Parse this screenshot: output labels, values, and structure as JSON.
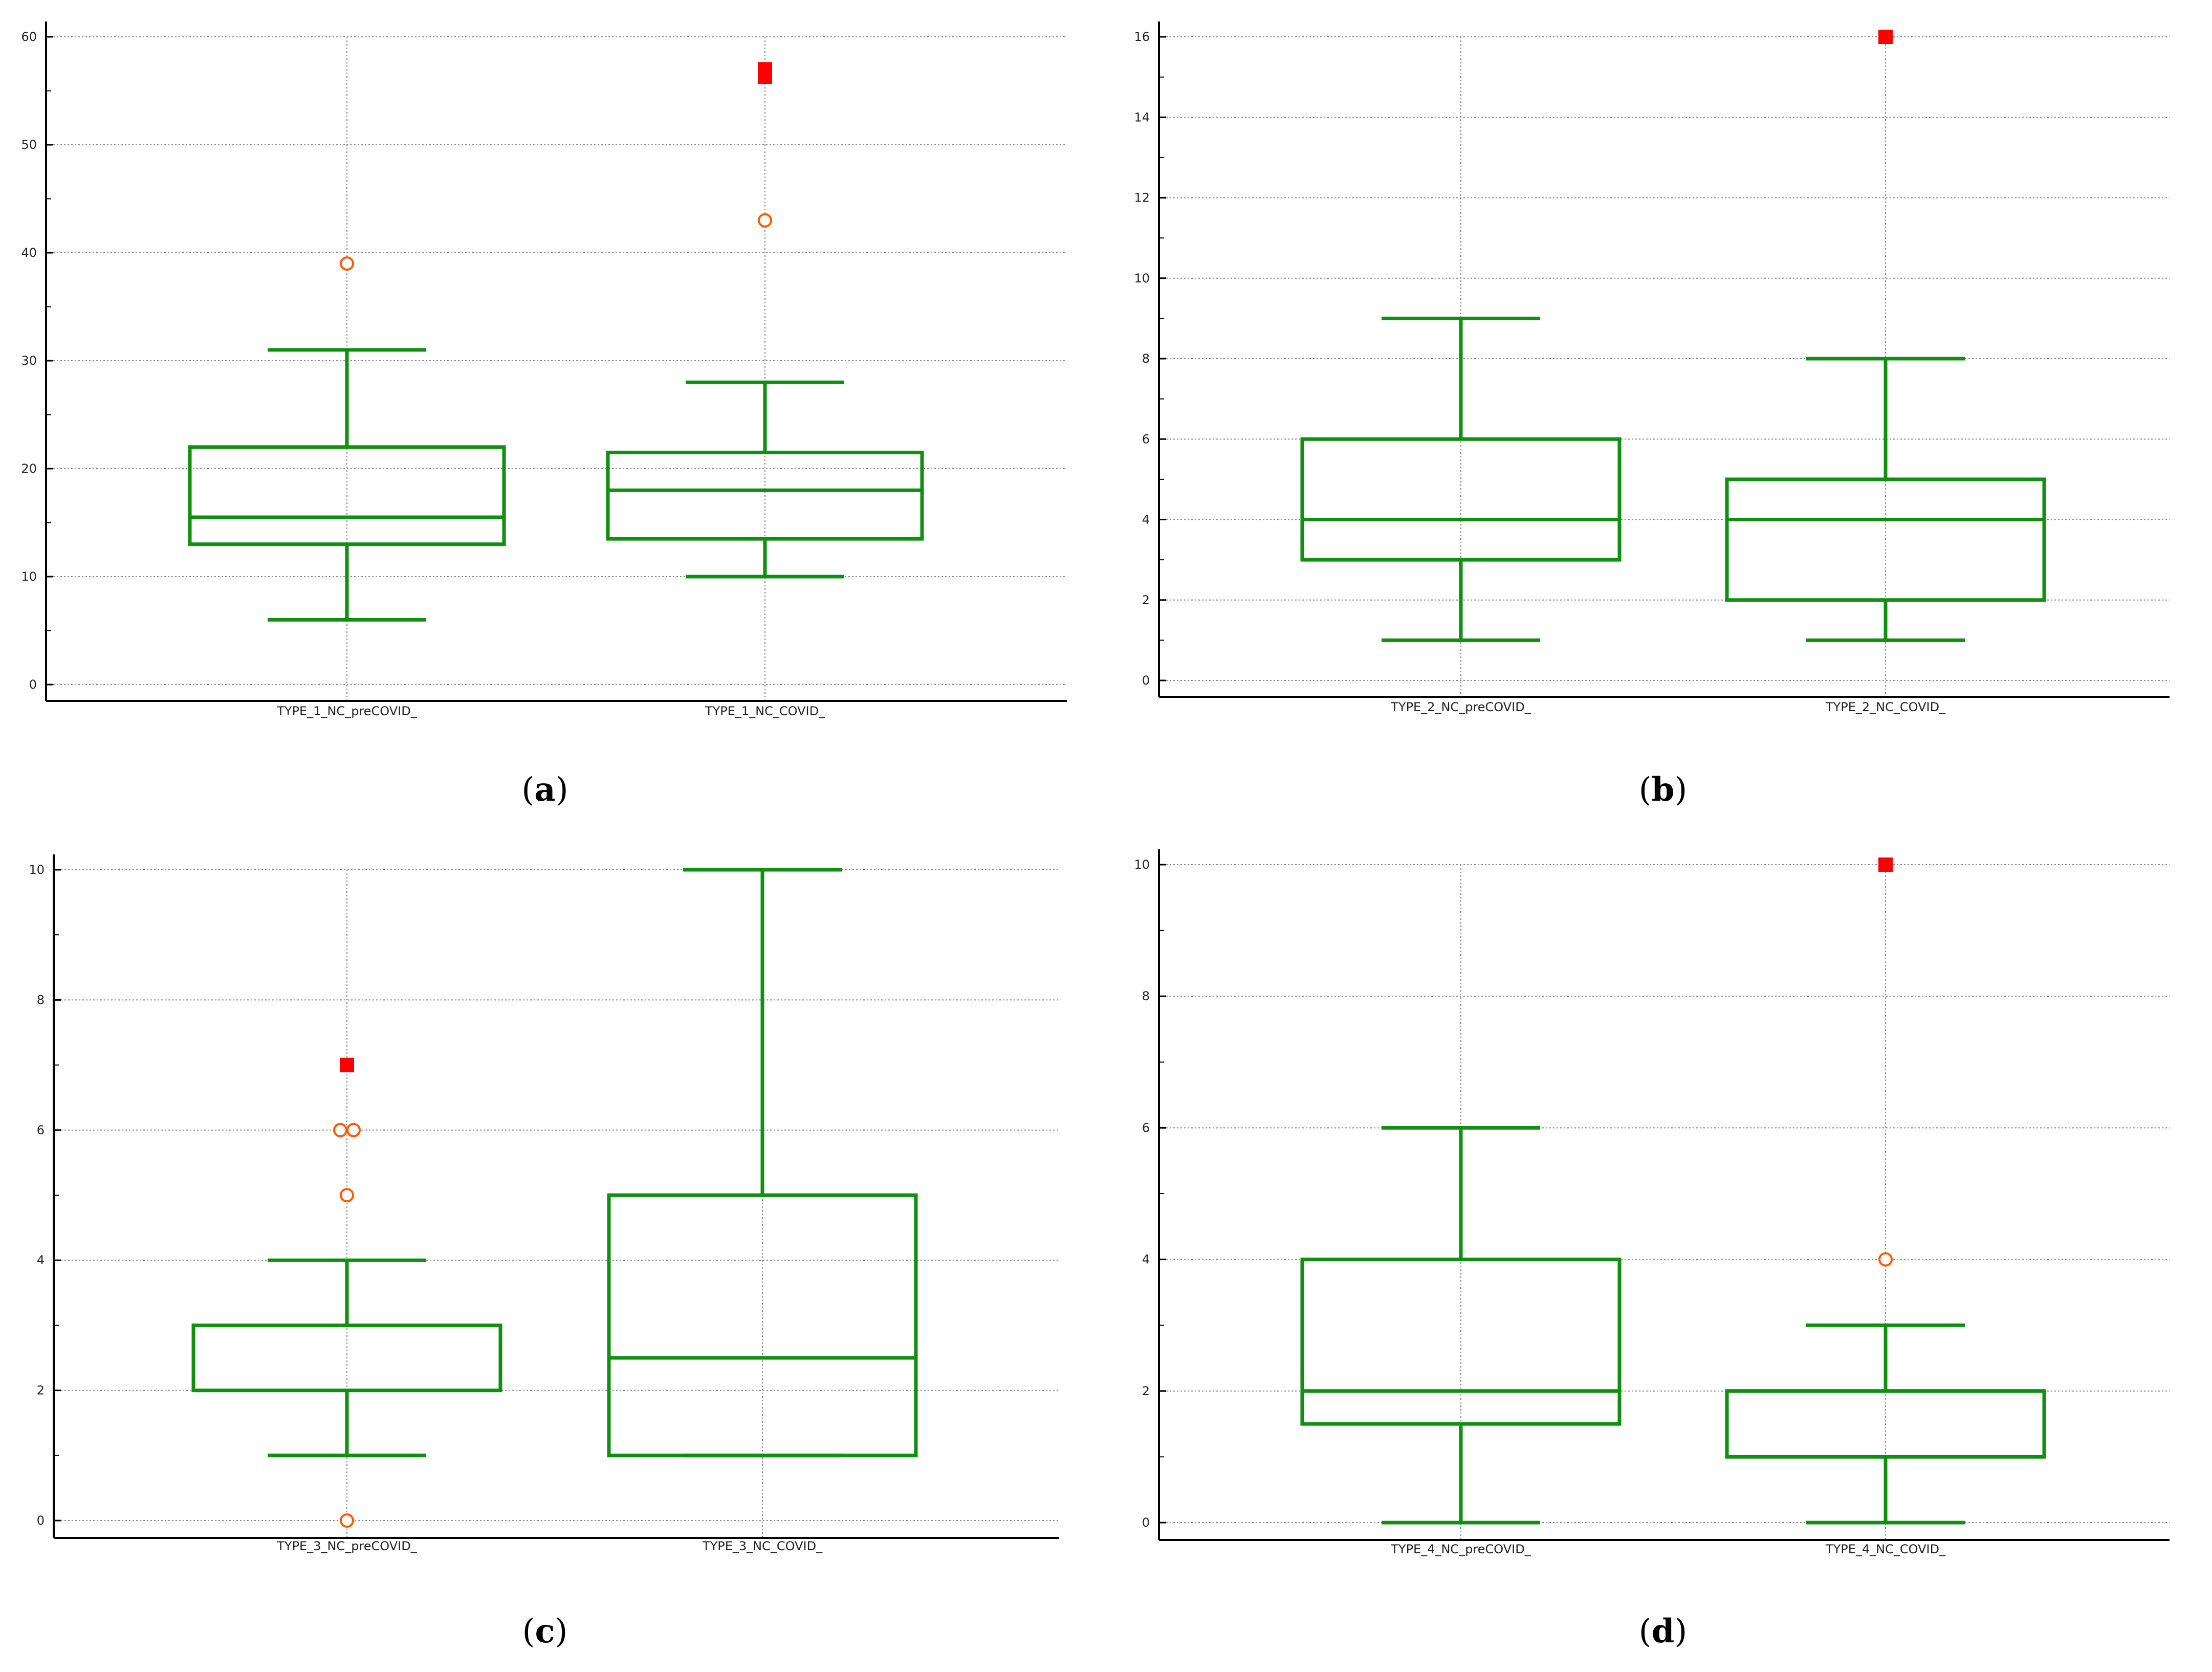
{
  "colors": {
    "box": "#109010",
    "outlier_circle": "#ff5a00",
    "outlier_square": "#ff0000",
    "grid": "#888888",
    "axis": "#000000"
  },
  "chart_data": [
    {
      "type": "box",
      "panel": "a",
      "label_open": "(",
      "label_letter": "a",
      "label_close": ")",
      "ylim": [
        0,
        60
      ],
      "y_ticks": [
        0,
        10,
        20,
        30,
        40,
        50,
        60
      ],
      "categories": [
        "TYPE_1_NC_preCOVID_",
        "TYPE_1_NC_COVID_"
      ],
      "series": [
        {
          "name": "TYPE_1_NC_preCOVID_",
          "whisker_low": 6,
          "q1": 13,
          "median": 15.5,
          "q3": 22,
          "whisker_high": 31,
          "outliers": [
            39
          ],
          "far_outliers": []
        },
        {
          "name": "TYPE_1_NC_COVID_",
          "whisker_low": 10,
          "q1": 13.5,
          "median": 18,
          "q3": 21.5,
          "whisker_high": 28,
          "outliers": [
            43
          ],
          "far_outliers": [
            56.3,
            57
          ]
        }
      ]
    },
    {
      "type": "box",
      "panel": "b",
      "label_open": "(",
      "label_letter": "b",
      "label_close": ")",
      "ylim": [
        0,
        16
      ],
      "y_ticks": [
        0,
        2,
        4,
        6,
        8,
        10,
        12,
        14,
        16
      ],
      "categories": [
        "TYPE_2_NC_preCOVID_",
        "TYPE_2_NC_COVID_"
      ],
      "series": [
        {
          "name": "TYPE_2_NC_preCOVID_",
          "whisker_low": 1,
          "q1": 3,
          "median": 4,
          "q3": 6,
          "whisker_high": 9,
          "outliers": [],
          "far_outliers": []
        },
        {
          "name": "TYPE_2_NC_COVID_",
          "whisker_low": 1,
          "q1": 2,
          "median": 4,
          "q3": 5,
          "whisker_high": 8,
          "outliers": [],
          "far_outliers": [
            16
          ]
        }
      ]
    },
    {
      "type": "box",
      "panel": "c",
      "label_open": "(",
      "label_letter": "c",
      "label_close": ")",
      "ylim": [
        0,
        10
      ],
      "y_ticks": [
        0,
        2,
        4,
        6,
        8,
        10
      ],
      "categories": [
        "TYPE_3_NC_preCOVID_",
        "TYPE_3_NC_COVID_"
      ],
      "series": [
        {
          "name": "TYPE_3_NC_preCOVID_",
          "whisker_low": 1,
          "q1": 2,
          "median": 2,
          "q3": 3,
          "whisker_high": 4,
          "outliers": [
            0,
            5,
            6,
            6
          ],
          "far_outliers": [
            7
          ]
        },
        {
          "name": "TYPE_3_NC_COVID_",
          "whisker_low": 1,
          "q1": 1,
          "median": 2.5,
          "q3": 5,
          "whisker_high": 10,
          "outliers": [],
          "far_outliers": []
        }
      ]
    },
    {
      "type": "box",
      "panel": "d",
      "label_open": "(",
      "label_letter": "d",
      "label_close": ")",
      "ylim": [
        0,
        10
      ],
      "y_ticks": [
        0,
        2,
        4,
        6,
        8,
        10
      ],
      "categories": [
        "TYPE_4_NC_preCOVID_",
        "TYPE_4_NC_COVID_"
      ],
      "series": [
        {
          "name": "TYPE_4_NC_preCOVID_",
          "whisker_low": 0,
          "q1": 1.5,
          "median": 2,
          "q3": 4,
          "whisker_high": 6,
          "outliers": [],
          "far_outliers": []
        },
        {
          "name": "TYPE_4_NC_COVID_",
          "whisker_low": 0,
          "q1": 1,
          "median": 2,
          "q3": 2,
          "whisker_high": 3,
          "outliers": [
            4
          ],
          "far_outliers": [
            10
          ]
        }
      ]
    }
  ]
}
